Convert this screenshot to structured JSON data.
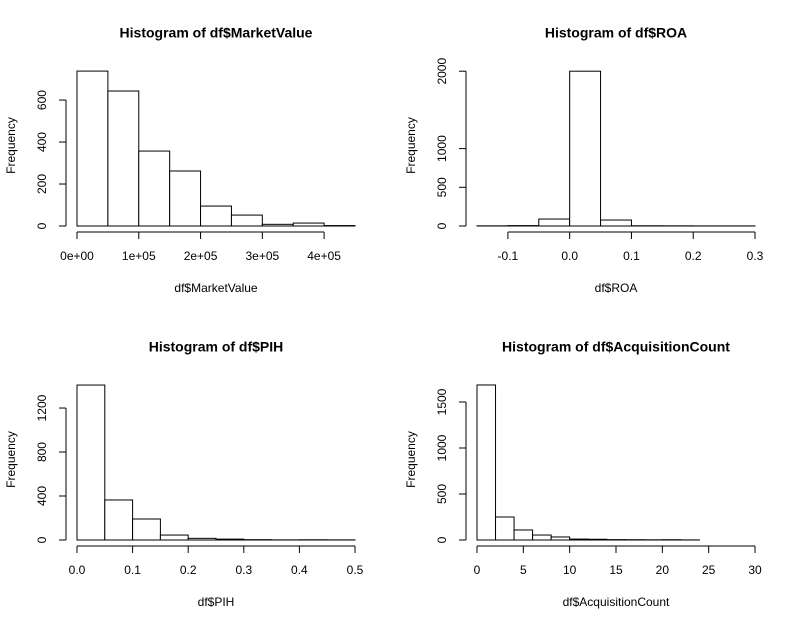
{
  "chart_data": [
    {
      "type": "histogram",
      "title": "Histogram of df$MarketValue",
      "xlabel": "df$MarketValue",
      "ylabel": "Frequency",
      "bins": [
        0,
        50000,
        100000,
        150000,
        200000,
        250000,
        300000,
        350000,
        400000,
        450000
      ],
      "values": [
        738,
        643,
        357,
        262,
        95,
        52,
        8,
        14,
        2
      ],
      "xlim": [
        0,
        450000
      ],
      "ylim": [
        0,
        767
      ],
      "xticks": [
        {
          "value": 0,
          "label": "0e+00"
        },
        {
          "value": 100000,
          "label": "1e+05"
        },
        {
          "value": 200000,
          "label": "2e+05"
        },
        {
          "value": 300000,
          "label": "3e+05"
        },
        {
          "value": 400000,
          "label": "4e+05"
        }
      ],
      "yticks": [
        0,
        200,
        400,
        600
      ],
      "color": "#ffffff"
    },
    {
      "type": "histogram",
      "title": "Histogram of df$ROA",
      "xlabel": "df$ROA",
      "ylabel": "Frequency",
      "bins": [
        -0.15,
        -0.1,
        -0.05,
        0,
        0.05,
        0.1,
        0.15,
        0.2,
        0.25,
        0.3
      ],
      "values": [
        2,
        5,
        90,
        2000,
        77,
        3,
        2,
        1,
        1
      ],
      "xlim": [
        -0.15,
        0.3
      ],
      "ylim": [
        0,
        2080
      ],
      "xticks": [
        -0.1,
        {
          "value": 0,
          "label": "0.0"
        },
        0.1,
        0.2,
        0.3
      ],
      "yticks": [
        0,
        500,
        1000,
        2000
      ],
      "color": "#ffffff"
    },
    {
      "type": "histogram",
      "title": "Histogram of df$PIH",
      "xlabel": "df$PIH",
      "ylabel": "Frequency",
      "bins": [
        0,
        0.05,
        0.1,
        0.15,
        0.2,
        0.25,
        0.3,
        0.35,
        0.4,
        0.45,
        0.5
      ],
      "values": [
        1409,
        364,
        191,
        45,
        15,
        8,
        3,
        1,
        2,
        1
      ],
      "xlim": [
        0,
        0.5
      ],
      "ylim": [
        0,
        1464
      ],
      "xticks": [
        {
          "value": 0,
          "label": "0.0"
        },
        0.1,
        0.2,
        0.3,
        0.4,
        0.5
      ],
      "yticks": [
        0,
        400,
        800,
        1200
      ],
      "color": "#ffffff"
    },
    {
      "type": "histogram",
      "title": "Histogram of df$AcquisitionCount",
      "xlabel": "df$AcquisitionCount",
      "ylabel": "Frequency",
      "bins": [
        0,
        2,
        4,
        6,
        8,
        10,
        12,
        14,
        16,
        18,
        20,
        22,
        24,
        26,
        28,
        30
      ],
      "values": [
        1685,
        250,
        109,
        54,
        33,
        10,
        8,
        4,
        3,
        2,
        3,
        1,
        0,
        0,
        0
      ],
      "xlim": [
        0,
        30
      ],
      "ylim": [
        0,
        1750
      ],
      "xticks": [
        0,
        5,
        10,
        15,
        20,
        25,
        30
      ],
      "yticks": [
        0,
        500,
        1000,
        1500
      ],
      "color": "#ffffff"
    }
  ]
}
